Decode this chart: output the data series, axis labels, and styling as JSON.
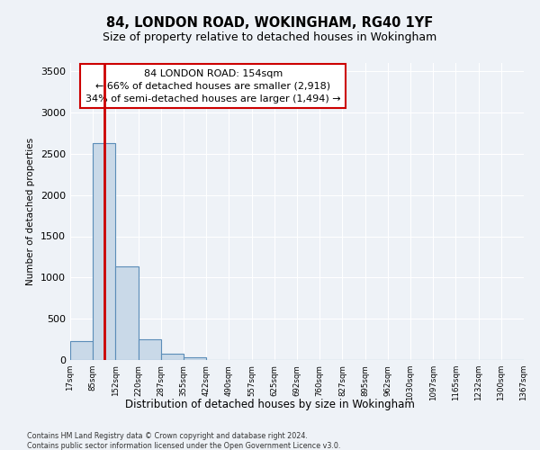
{
  "title1": "84, LONDON ROAD, WOKINGHAM, RG40 1YF",
  "title2": "Size of property relative to detached houses in Wokingham",
  "xlabel": "Distribution of detached houses by size in Wokingham",
  "ylabel": "Number of detached properties",
  "annotation_line1": "84 LONDON ROAD: 154sqm",
  "annotation_line2": "← 66% of detached houses are smaller (2,918)",
  "annotation_line3": "34% of semi-detached houses are larger (1,494) →",
  "footer1": "Contains HM Land Registry data © Crown copyright and database right 2024.",
  "footer2": "Contains public sector information licensed under the Open Government Licence v3.0.",
  "bin_labels": [
    "17sqm",
    "85sqm",
    "152sqm",
    "220sqm",
    "287sqm",
    "355sqm",
    "422sqm",
    "490sqm",
    "557sqm",
    "625sqm",
    "692sqm",
    "760sqm",
    "827sqm",
    "895sqm",
    "962sqm",
    "1030sqm",
    "1097sqm",
    "1165sqm",
    "1232sqm",
    "1300sqm",
    "1367sqm"
  ],
  "bar_values": [
    230,
    2630,
    1130,
    250,
    80,
    30,
    0,
    0,
    0,
    0,
    0,
    0,
    0,
    0,
    0,
    0,
    0,
    0,
    0,
    0
  ],
  "bar_color": "#c9d9e8",
  "bar_edge_color": "#5b8db8",
  "property_line_value": 1.5,
  "property_line_color": "#cc0000",
  "ylim": [
    0,
    3600
  ],
  "yticks": [
    0,
    500,
    1000,
    1500,
    2000,
    2500,
    3000,
    3500
  ],
  "bg_color": "#eef2f7",
  "plot_bg_color": "#eef2f7",
  "annotation_box_color": "#ffffff",
  "annotation_border_color": "#cc0000"
}
